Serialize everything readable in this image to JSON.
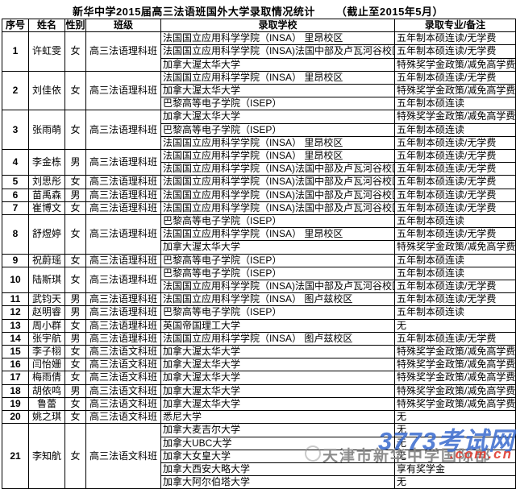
{
  "title_main": "新华中学2015届高三法语班国外大学录取情况统计",
  "title_note": "（截止至2015年5月）",
  "table": {
    "headers": [
      "序号",
      "姓名",
      "性别",
      "班级",
      "录取学校",
      "录取专业/备注"
    ],
    "rows": [
      {
        "no": "1",
        "name": "许虹雯",
        "gender": "女",
        "class": "高三法语理科班",
        "admissions": [
          {
            "school": "法国国立应用科学学院（INSA） 里昂校区",
            "remark": "五年制本硕连读/无学费"
          },
          {
            "school": "法国国立应用科学学院（INSA)法国中部及卢瓦河谷校区",
            "remark": "五年制本硕连读/无学费"
          },
          {
            "school": "加拿大渥太华大学",
            "remark": "特殊奖学金政策/减免高学费"
          }
        ]
      },
      {
        "no": "2",
        "name": "刘佳依",
        "gender": "女",
        "class": "高三法语理科班",
        "admissions": [
          {
            "school": "法国国立应用科学学院（INSA） 里昂校区",
            "remark": "五年制本硕连读/无学费"
          },
          {
            "school": "加拿大渥太华大学",
            "remark": "特殊奖学金政策/减免高学费"
          },
          {
            "school": "巴黎高等电子学院（ISEP）",
            "remark": "五年制本硕连读"
          }
        ]
      },
      {
        "no": "3",
        "name": "张雨萌",
        "gender": "女",
        "class": "高三法语理科班",
        "admissions": [
          {
            "school": "加拿大渥太华大学",
            "remark": "特殊奖学金政策/减免高学费"
          },
          {
            "school": "巴黎高等电子学院（ISEP）",
            "remark": "五年制本硕连读"
          },
          {
            "school": "法国国立应用科学学院（INSA） 里昂校区",
            "remark": "五年制本硕连读/无学费"
          }
        ]
      },
      {
        "no": "4",
        "name": "李金栋",
        "gender": "男",
        "class": "高三法语理科班",
        "admissions": [
          {
            "school": "法国国立应用科学学院（INSA） 里昂校区",
            "remark": "五年制本硕连读/无学费"
          },
          {
            "school": "法国国立应用科学学院（INSA)法国中部及卢瓦河谷校区",
            "remark": "五年制本硕连读/无学费"
          }
        ]
      },
      {
        "no": "5",
        "name": "刘思彤",
        "gender": "女",
        "class": "高三法语理科班",
        "admissions": [
          {
            "school": "法国国立应用科学学院（INSA)法国中部及卢瓦河谷校区",
            "remark": "五年制本硕连读/无学费"
          }
        ]
      },
      {
        "no": "6",
        "name": "苗禹森",
        "gender": "男",
        "class": "高三法语理科班",
        "admissions": [
          {
            "school": "法国国立应用科学学院（INSA)法国中部及卢瓦河谷校区",
            "remark": "五年制本硕连读/无学费"
          }
        ]
      },
      {
        "no": "7",
        "name": "崔博文",
        "gender": "女",
        "class": "高三法语理科班",
        "admissions": [
          {
            "school": "法国国立应用科学学院（INSA)法国中部及卢瓦河谷校区",
            "remark": "五年制本硕连读/无学费"
          }
        ]
      },
      {
        "no": "8",
        "name": "舒煜婷",
        "gender": "女",
        "class": "高三法语理科班",
        "admissions": [
          {
            "school": "巴黎高等电子学院（ISEP）",
            "remark": "五年制本硕连读"
          },
          {
            "school": "法国国立应用科学学院（INSA） 里昂校区",
            "remark": "五年制本硕连读/无学费"
          },
          {
            "school": "加拿大渥太华大学",
            "remark": "特殊奖学金政策/减免高学费"
          }
        ]
      },
      {
        "no": "9",
        "name": "祝蔚瑶",
        "gender": "女",
        "class": "高三法语理科班",
        "admissions": [
          {
            "school": "巴黎高等电子学院（ISEP）",
            "remark": "五年制本硕连读"
          }
        ]
      },
      {
        "no": "10",
        "name": "陆斯琪",
        "gender": "女",
        "class": "高三法语理科班",
        "admissions": [
          {
            "school": "巴黎高等电子学院（ISEP）",
            "remark": "五年制本硕连读"
          },
          {
            "school": "法国国立应用科学学院（INSA)法国中部及卢瓦河谷校区",
            "remark": "五年制本硕连读/无学费"
          }
        ]
      },
      {
        "no": "11",
        "name": "武钧天",
        "gender": "男",
        "class": "高三法语理科班",
        "admissions": [
          {
            "school": "法国国立应用科学学院（INSA） 图卢兹校区",
            "remark": "五年制本硕连读/无学费"
          }
        ]
      },
      {
        "no": "12",
        "name": "赵明睿",
        "gender": "男",
        "class": "高三法语理科班",
        "admissions": [
          {
            "school": "巴黎高等电子学院（ISEP）",
            "remark": "五年制本硕连读"
          }
        ]
      },
      {
        "no": "13",
        "name": "周小群",
        "gender": "女",
        "class": "高三法语理科班",
        "admissions": [
          {
            "school": "英国帝国理工大学",
            "remark": "无"
          }
        ]
      },
      {
        "no": "14",
        "name": "张宇航",
        "gender": "男",
        "class": "高三法语理科班",
        "admissions": [
          {
            "school": "法国国立应用科学学院（INSA） 图卢兹校区",
            "remark": "五年制本硕连读/无学费"
          }
        ]
      },
      {
        "no": "15",
        "name": "李子栩",
        "gender": "女",
        "class": "高三法语文科班",
        "admissions": [
          {
            "school": "加拿大渥太华大学",
            "remark": "特殊奖学金政策/减免高学费"
          }
        ]
      },
      {
        "no": "16",
        "name": "闫怡姗",
        "gender": "女",
        "class": "高三法语文科班",
        "admissions": [
          {
            "school": "加拿大渥太华大学",
            "remark": "特殊奖学金政策/减免高学费"
          }
        ]
      },
      {
        "no": "17",
        "name": "梅雨倩",
        "gender": "女",
        "class": "高三法语文科班",
        "admissions": [
          {
            "school": "加拿大渥太华大学",
            "remark": "特殊奖学金政策/减免高学费"
          }
        ]
      },
      {
        "no": "18",
        "name": "胡依鸣",
        "gender": "男",
        "class": "高三法语文科班",
        "admissions": [
          {
            "school": "加拿大渥太华大学",
            "remark": "特殊奖学金政策/减免高学费"
          }
        ]
      },
      {
        "no": "19",
        "name": "鲁蕾",
        "gender": "女",
        "class": "高三法语文科班",
        "admissions": [
          {
            "school": "加拿大渥太华大学",
            "remark": "特殊奖学金政策/减免高学费"
          }
        ]
      },
      {
        "no": "20",
        "name": "姚之琪",
        "gender": "女",
        "class": "高三法语文科班",
        "admissions": [
          {
            "school": "悉尼大学",
            "remark": "无"
          }
        ]
      },
      {
        "no": "21",
        "name": "李知航",
        "gender": "女",
        "class": "高三法语文科班",
        "admissions": [
          {
            "school": "加拿大麦吉尔大学",
            "remark": "无"
          },
          {
            "school": "加拿大UBC大学",
            "remark": "无"
          },
          {
            "school": "加拿大女皇大学",
            "remark": "无"
          },
          {
            "school": "加拿大西安大略大学",
            "remark": "享有奖学金"
          },
          {
            "school": "加拿大阿尔伯塔大学",
            "remark": "无"
          }
        ]
      }
    ]
  },
  "watermark": {
    "site_name": "3773考试网",
    "site_domain": ".com.cn",
    "org_name": "天津市新华中学国际部",
    "site_color": "#3f6fd0",
    "domain_color": "#e03a2f",
    "org_color": "#8c8c8c"
  }
}
